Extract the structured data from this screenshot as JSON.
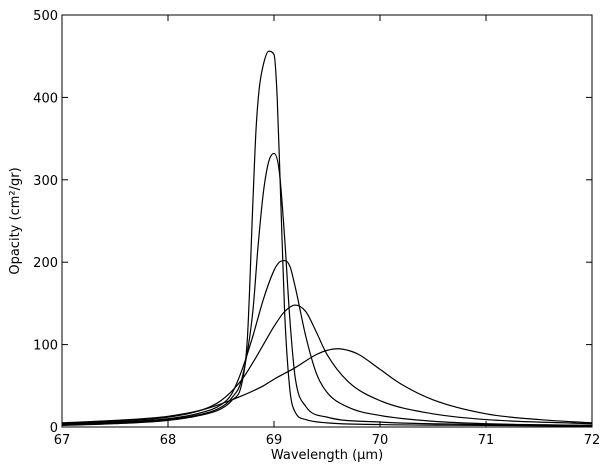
{
  "chart_data": {
    "type": "line",
    "title": "",
    "xlabel": "Wavelength (μm)",
    "ylabel": "Opacity (cm²/gr)",
    "xlim": [
      67,
      72
    ],
    "ylim": [
      0,
      500
    ],
    "xticks": [
      67,
      68,
      69,
      70,
      71,
      72
    ],
    "yticks": [
      0,
      100,
      200,
      300,
      400,
      500
    ],
    "grid": false,
    "series": [
      {
        "x": [
          67,
          67.5,
          68,
          68.3,
          68.5,
          68.6,
          68.7,
          68.75,
          68.8,
          68.83,
          68.86,
          68.9,
          68.95,
          69.0,
          69.03,
          69.06,
          69.1,
          69.15,
          69.2,
          69.3,
          69.5,
          70,
          71,
          72
        ],
        "values": [
          2,
          4,
          8,
          14,
          22,
          32,
          55,
          110,
          270,
          360,
          410,
          440,
          456,
          452,
          400,
          290,
          140,
          45,
          18,
          9,
          5,
          3,
          2,
          1
        ]
      },
      {
        "x": [
          67,
          67.5,
          68,
          68.3,
          68.5,
          68.6,
          68.7,
          68.8,
          68.85,
          68.9,
          68.95,
          69.0,
          69.05,
          69.1,
          69.15,
          69.2,
          69.3,
          69.5,
          70,
          71,
          72
        ],
        "values": [
          3,
          5,
          9,
          15,
          24,
          35,
          60,
          140,
          220,
          285,
          322,
          332,
          310,
          230,
          130,
          60,
          25,
          12,
          6,
          3,
          2
        ]
      },
      {
        "x": [
          67,
          67.5,
          68,
          68.3,
          68.5,
          68.6,
          68.7,
          68.8,
          68.9,
          69.0,
          69.05,
          69.1,
          69.15,
          69.2,
          69.3,
          69.4,
          69.5,
          69.7,
          70,
          70.5,
          71,
          72
        ],
        "values": [
          3,
          6,
          10,
          17,
          27,
          40,
          70,
          110,
          155,
          190,
          200,
          202,
          195,
          170,
          110,
          65,
          42,
          24,
          14,
          7,
          4,
          2
        ]
      },
      {
        "x": [
          67,
          67.5,
          68,
          68.3,
          68.5,
          68.7,
          68.8,
          68.9,
          69.0,
          69.1,
          69.2,
          69.3,
          69.4,
          69.5,
          69.7,
          70,
          70.5,
          71,
          72
        ],
        "values": [
          4,
          7,
          12,
          20,
          32,
          58,
          78,
          100,
          122,
          140,
          148,
          140,
          115,
          88,
          55,
          32,
          16,
          9,
          4
        ]
      },
      {
        "x": [
          67,
          67.5,
          68,
          68.3,
          68.5,
          68.7,
          68.9,
          69.0,
          69.2,
          69.4,
          69.5,
          69.6,
          69.7,
          69.8,
          70.0,
          70.2,
          70.5,
          71,
          71.5,
          72
        ],
        "values": [
          5,
          8,
          13,
          20,
          28,
          38,
          50,
          58,
          72,
          88,
          93,
          95,
          93,
          88,
          70,
          52,
          33,
          16,
          9,
          5
        ]
      }
    ]
  }
}
